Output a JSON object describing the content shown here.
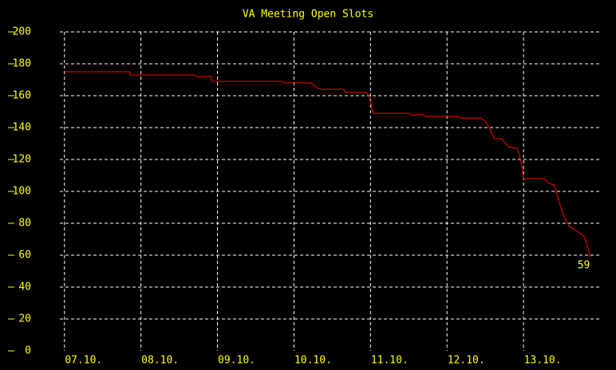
{
  "chart_data": {
    "type": "line",
    "title": "VA Meeting Open Slots",
    "x": [
      0,
      0.85,
      0.86,
      1.7,
      1.72,
      1.92,
      1.93,
      2.85,
      2.87,
      3.2,
      3.25,
      3.3,
      3.35,
      3.65,
      3.68,
      3.95,
      3.98,
      4.0,
      4.03,
      4.5,
      4.52,
      4.7,
      4.72,
      5.15,
      5.17,
      5.45,
      5.5,
      5.55,
      5.62,
      5.72,
      5.8,
      5.92,
      5.97,
      6.0,
      6.27,
      6.33,
      6.4,
      6.45,
      6.5,
      6.55,
      6.6,
      6.67,
      6.79,
      6.84,
      6.87
    ],
    "series": [
      {
        "color": "#ff0000",
        "values": [
          175,
          175,
          173,
          173,
          172,
          172,
          169,
          169,
          168,
          168,
          167,
          165,
          164,
          164,
          162,
          162,
          160,
          156,
          149,
          149,
          148,
          148,
          147,
          147,
          146,
          146,
          144,
          140,
          133,
          133,
          128,
          127,
          118,
          108,
          108,
          105,
          104,
          96,
          88,
          82,
          78,
          76,
          72,
          65,
          59
        ]
      }
    ],
    "xlim": [
      -0.06,
      7.0
    ],
    "xticks": [
      {
        "value": 0,
        "label": "07.10."
      },
      {
        "value": 1,
        "label": "08.10."
      },
      {
        "value": 2,
        "label": "09.10."
      },
      {
        "value": 3,
        "label": "10.10."
      },
      {
        "value": 4,
        "label": "11.10."
      },
      {
        "value": 5,
        "label": "12.10."
      },
      {
        "value": 6,
        "label": "13.10."
      }
    ],
    "ylim": [
      0,
      200
    ],
    "yticks": [
      0,
      20,
      40,
      60,
      80,
      100,
      120,
      140,
      160,
      180,
      200
    ],
    "grid": true
  }
}
